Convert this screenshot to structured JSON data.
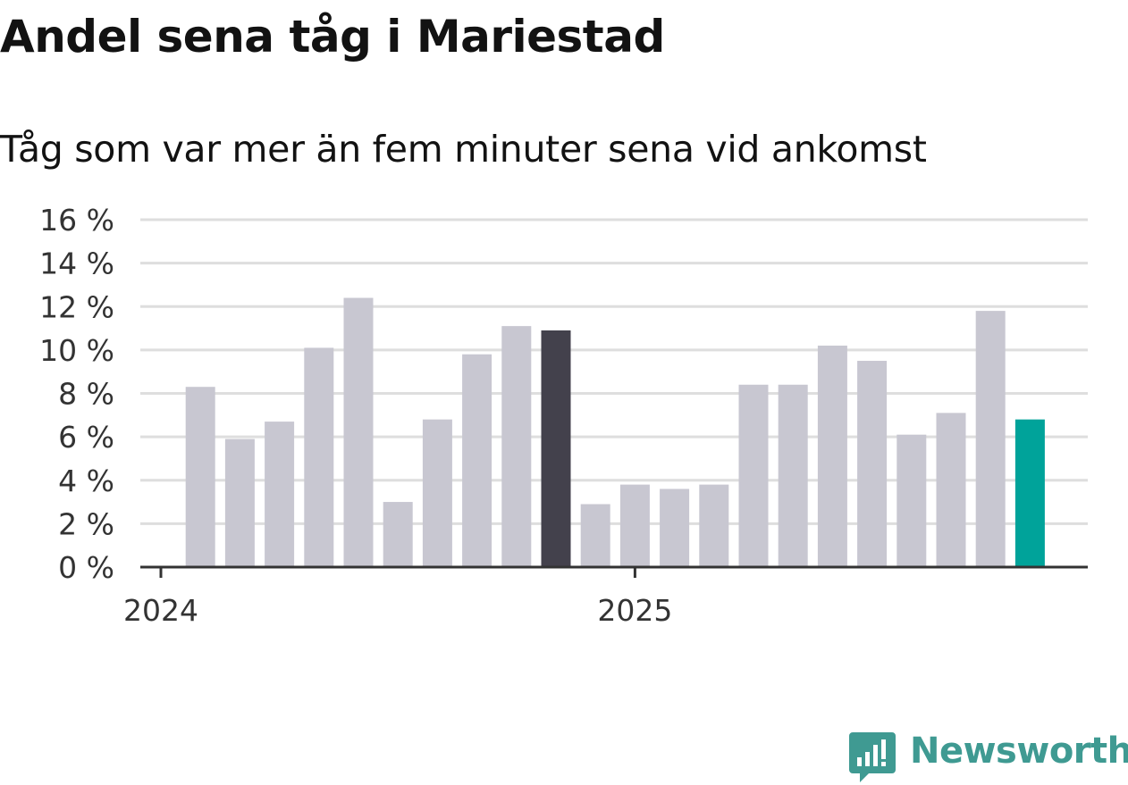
{
  "chart_data": {
    "type": "bar",
    "title": "Andel sena tåg i Mariestad",
    "subtitle": "Tåg som var mer än fem minuter sena vid ankomst",
    "xlabel": "",
    "ylabel": "",
    "ylim": [
      0,
      16
    ],
    "yticks": [
      {
        "value": 0,
        "label": "0 %"
      },
      {
        "value": 2,
        "label": "2 %"
      },
      {
        "value": 4,
        "label": "4 %"
      },
      {
        "value": 6,
        "label": "6 %"
      },
      {
        "value": 8,
        "label": "8 %"
      },
      {
        "value": 10,
        "label": "10 %"
      },
      {
        "value": 12,
        "label": "12 %"
      },
      {
        "value": 14,
        "label": "14 %"
      },
      {
        "value": 16,
        "label": "16 %"
      }
    ],
    "xticks": [
      {
        "label": "2024",
        "at_month_index": 0
      },
      {
        "label": "2025",
        "at_month_index": 12
      }
    ],
    "grid": true,
    "legend": "none",
    "colors": {
      "default": "#c8c7d1",
      "highlight_dark": "#43414c",
      "highlight_accent": "#00a39a",
      "grid": "#dedede",
      "axis": "#333333"
    },
    "bars": [
      {
        "month_index": 1,
        "value": 8.3,
        "color": "default"
      },
      {
        "month_index": 2,
        "value": 5.9,
        "color": "default"
      },
      {
        "month_index": 3,
        "value": 6.7,
        "color": "default"
      },
      {
        "month_index": 4,
        "value": 10.1,
        "color": "default"
      },
      {
        "month_index": 5,
        "value": 12.4,
        "color": "default"
      },
      {
        "month_index": 6,
        "value": 3.0,
        "color": "default"
      },
      {
        "month_index": 7,
        "value": 6.8,
        "color": "default"
      },
      {
        "month_index": 8,
        "value": 9.8,
        "color": "default"
      },
      {
        "month_index": 9,
        "value": 11.1,
        "color": "default"
      },
      {
        "month_index": 10,
        "value": 10.9,
        "color": "highlight_dark"
      },
      {
        "month_index": 11,
        "value": 2.9,
        "color": "default"
      },
      {
        "month_index": 12,
        "value": 3.8,
        "color": "default"
      },
      {
        "month_index": 13,
        "value": 3.6,
        "color": "default"
      },
      {
        "month_index": 14,
        "value": 3.8,
        "color": "default"
      },
      {
        "month_index": 15,
        "value": 8.4,
        "color": "default"
      },
      {
        "month_index": 16,
        "value": 8.4,
        "color": "default"
      },
      {
        "month_index": 17,
        "value": 10.2,
        "color": "default"
      },
      {
        "month_index": 18,
        "value": 9.5,
        "color": "default"
      },
      {
        "month_index": 19,
        "value": 6.1,
        "color": "default"
      },
      {
        "month_index": 20,
        "value": 7.1,
        "color": "default"
      },
      {
        "month_index": 21,
        "value": 11.8,
        "color": "default"
      },
      {
        "month_index": 22,
        "value": 6.8,
        "color": "highlight_accent"
      }
    ]
  },
  "branding": {
    "logo_text": "Newsworthy",
    "logo_icon": "bar-chart-speech-bubble-icon"
  }
}
